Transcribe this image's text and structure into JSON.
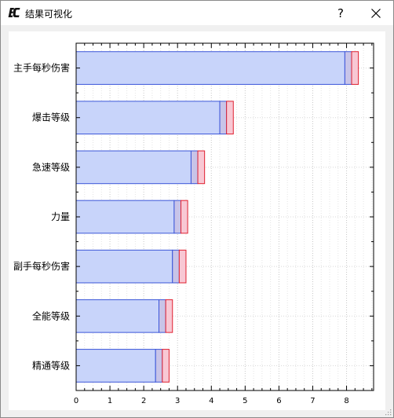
{
  "window": {
    "title": "结果可视化",
    "help_label": "?",
    "app_icon": "ec-logo-icon",
    "close_icon": "close-icon"
  },
  "chart_data": {
    "type": "bar",
    "orientation": "horizontal",
    "stacked": true,
    "categories": [
      "主手每秒伤害",
      "爆击等级",
      "急速等级",
      "力量",
      "副手每秒伤害",
      "全能等级",
      "精通等级"
    ],
    "series": [
      {
        "values": [
          7.95,
          4.25,
          3.4,
          2.9,
          2.85,
          2.45,
          2.35
        ],
        "color": "#c8d4fa",
        "edge": "#3a55d8"
      },
      {
        "values": [
          0.2,
          0.2,
          0.2,
          0.2,
          0.2,
          0.2,
          0.2
        ],
        "color": "#c8c4e8",
        "edge": "#3a55d8"
      },
      {
        "values": [
          0.2,
          0.2,
          0.2,
          0.2,
          0.2,
          0.2,
          0.2
        ],
        "color": "#f8c8d4",
        "edge": "#e02030"
      }
    ],
    "xlim": [
      0,
      8.8
    ],
    "xticks": [
      "0",
      "1",
      "2",
      "3",
      "4",
      "5",
      "6",
      "7",
      "8"
    ],
    "grid": true,
    "title": "",
    "xlabel": "",
    "ylabel": ""
  }
}
